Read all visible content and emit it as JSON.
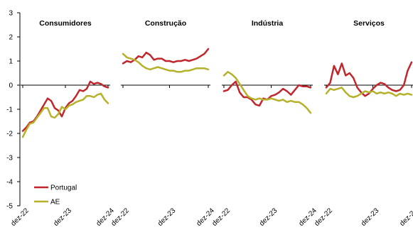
{
  "colors": {
    "portugal": "#C0272D",
    "ae": "#B5B12A",
    "axis": "#000000"
  },
  "chart_data": {
    "type": "line",
    "ylim": [
      -5,
      3
    ],
    "yticks": [
      "3",
      "2",
      "1",
      "0",
      "-1",
      "-2",
      "-3",
      "-4",
      "-5"
    ],
    "xticks": [
      "dez-22",
      "dez-23",
      "dez-24"
    ],
    "legend": {
      "placement": "bottom-left",
      "entries": [
        "Portugal",
        "AE"
      ]
    },
    "panels": [
      {
        "title": "Consumidores",
        "series": [
          {
            "name": "Portugal",
            "values": [
              -1.9,
              -1.75,
              -1.55,
              -1.5,
              -1.3,
              -1.05,
              -0.8,
              -0.55,
              -0.65,
              -0.95,
              -1.05,
              -1.3,
              -0.95,
              -0.75,
              -0.65,
              -0.45,
              -0.2,
              -0.25,
              -0.15,
              0.15,
              0.05,
              0.1,
              0.05,
              -0.05,
              -0.1
            ]
          },
          {
            "name": "AE",
            "values": [
              -2.15,
              -1.85,
              -1.6,
              -1.55,
              -1.35,
              -1.15,
              -0.95,
              -0.95,
              -1.3,
              -1.35,
              -1.2,
              -0.9,
              -1.0,
              -0.85,
              -0.8,
              -0.7,
              -0.65,
              -0.6,
              -0.45,
              -0.45,
              -0.5,
              -0.4,
              -0.35,
              -0.6,
              -0.75
            ]
          }
        ]
      },
      {
        "title": "Construção",
        "series": [
          {
            "name": "Portugal",
            "values": [
              0.9,
              1.0,
              0.95,
              1.05,
              1.2,
              1.15,
              1.35,
              1.25,
              1.05,
              1.1,
              1.1,
              1.0,
              1.0,
              0.95,
              1.0,
              1.0,
              1.05,
              1.0,
              1.05,
              1.1,
              1.2,
              1.3,
              1.5
            ]
          },
          {
            "name": "AE",
            "values": [
              1.3,
              1.15,
              1.1,
              1.05,
              0.95,
              0.8,
              0.7,
              0.65,
              0.7,
              0.75,
              0.7,
              0.65,
              0.6,
              0.6,
              0.55,
              0.55,
              0.6,
              0.6,
              0.65,
              0.7,
              0.7,
              0.7,
              0.65
            ]
          }
        ]
      },
      {
        "title": "Indústria",
        "series": [
          {
            "name": "Portugal",
            "values": [
              -0.25,
              -0.2,
              0.0,
              0.15,
              -0.3,
              -0.5,
              -0.5,
              -0.6,
              -0.8,
              -0.85,
              -0.55,
              -0.6,
              -0.45,
              -0.4,
              -0.3,
              -0.15,
              -0.25,
              -0.4,
              -0.2,
              0.0,
              -0.05,
              -0.05,
              -0.1
            ]
          },
          {
            "name": "AE",
            "values": [
              0.4,
              0.55,
              0.45,
              0.3,
              0.05,
              -0.2,
              -0.45,
              -0.55,
              -0.6,
              -0.55,
              -0.6,
              -0.6,
              -0.55,
              -0.6,
              -0.65,
              -0.6,
              -0.7,
              -0.65,
              -0.7,
              -0.7,
              -0.8,
              -0.95,
              -1.15
            ]
          }
        ]
      },
      {
        "title": "Serviços",
        "series": [
          {
            "name": "Portugal",
            "values": [
              -0.1,
              0.1,
              0.8,
              0.45,
              0.9,
              0.4,
              0.5,
              0.3,
              -0.1,
              -0.3,
              -0.45,
              -0.35,
              -0.15,
              0.0,
              0.1,
              0.05,
              -0.1,
              -0.2,
              -0.25,
              -0.2,
              0.0,
              0.6,
              0.95
            ]
          },
          {
            "name": "AE",
            "values": [
              -0.35,
              -0.15,
              -0.2,
              -0.15,
              -0.1,
              -0.3,
              -0.45,
              -0.5,
              -0.45,
              -0.35,
              -0.25,
              -0.3,
              -0.25,
              -0.35,
              -0.3,
              -0.35,
              -0.3,
              -0.35,
              -0.45,
              -0.35,
              -0.4,
              -0.35,
              -0.4
            ]
          }
        ]
      }
    ]
  }
}
